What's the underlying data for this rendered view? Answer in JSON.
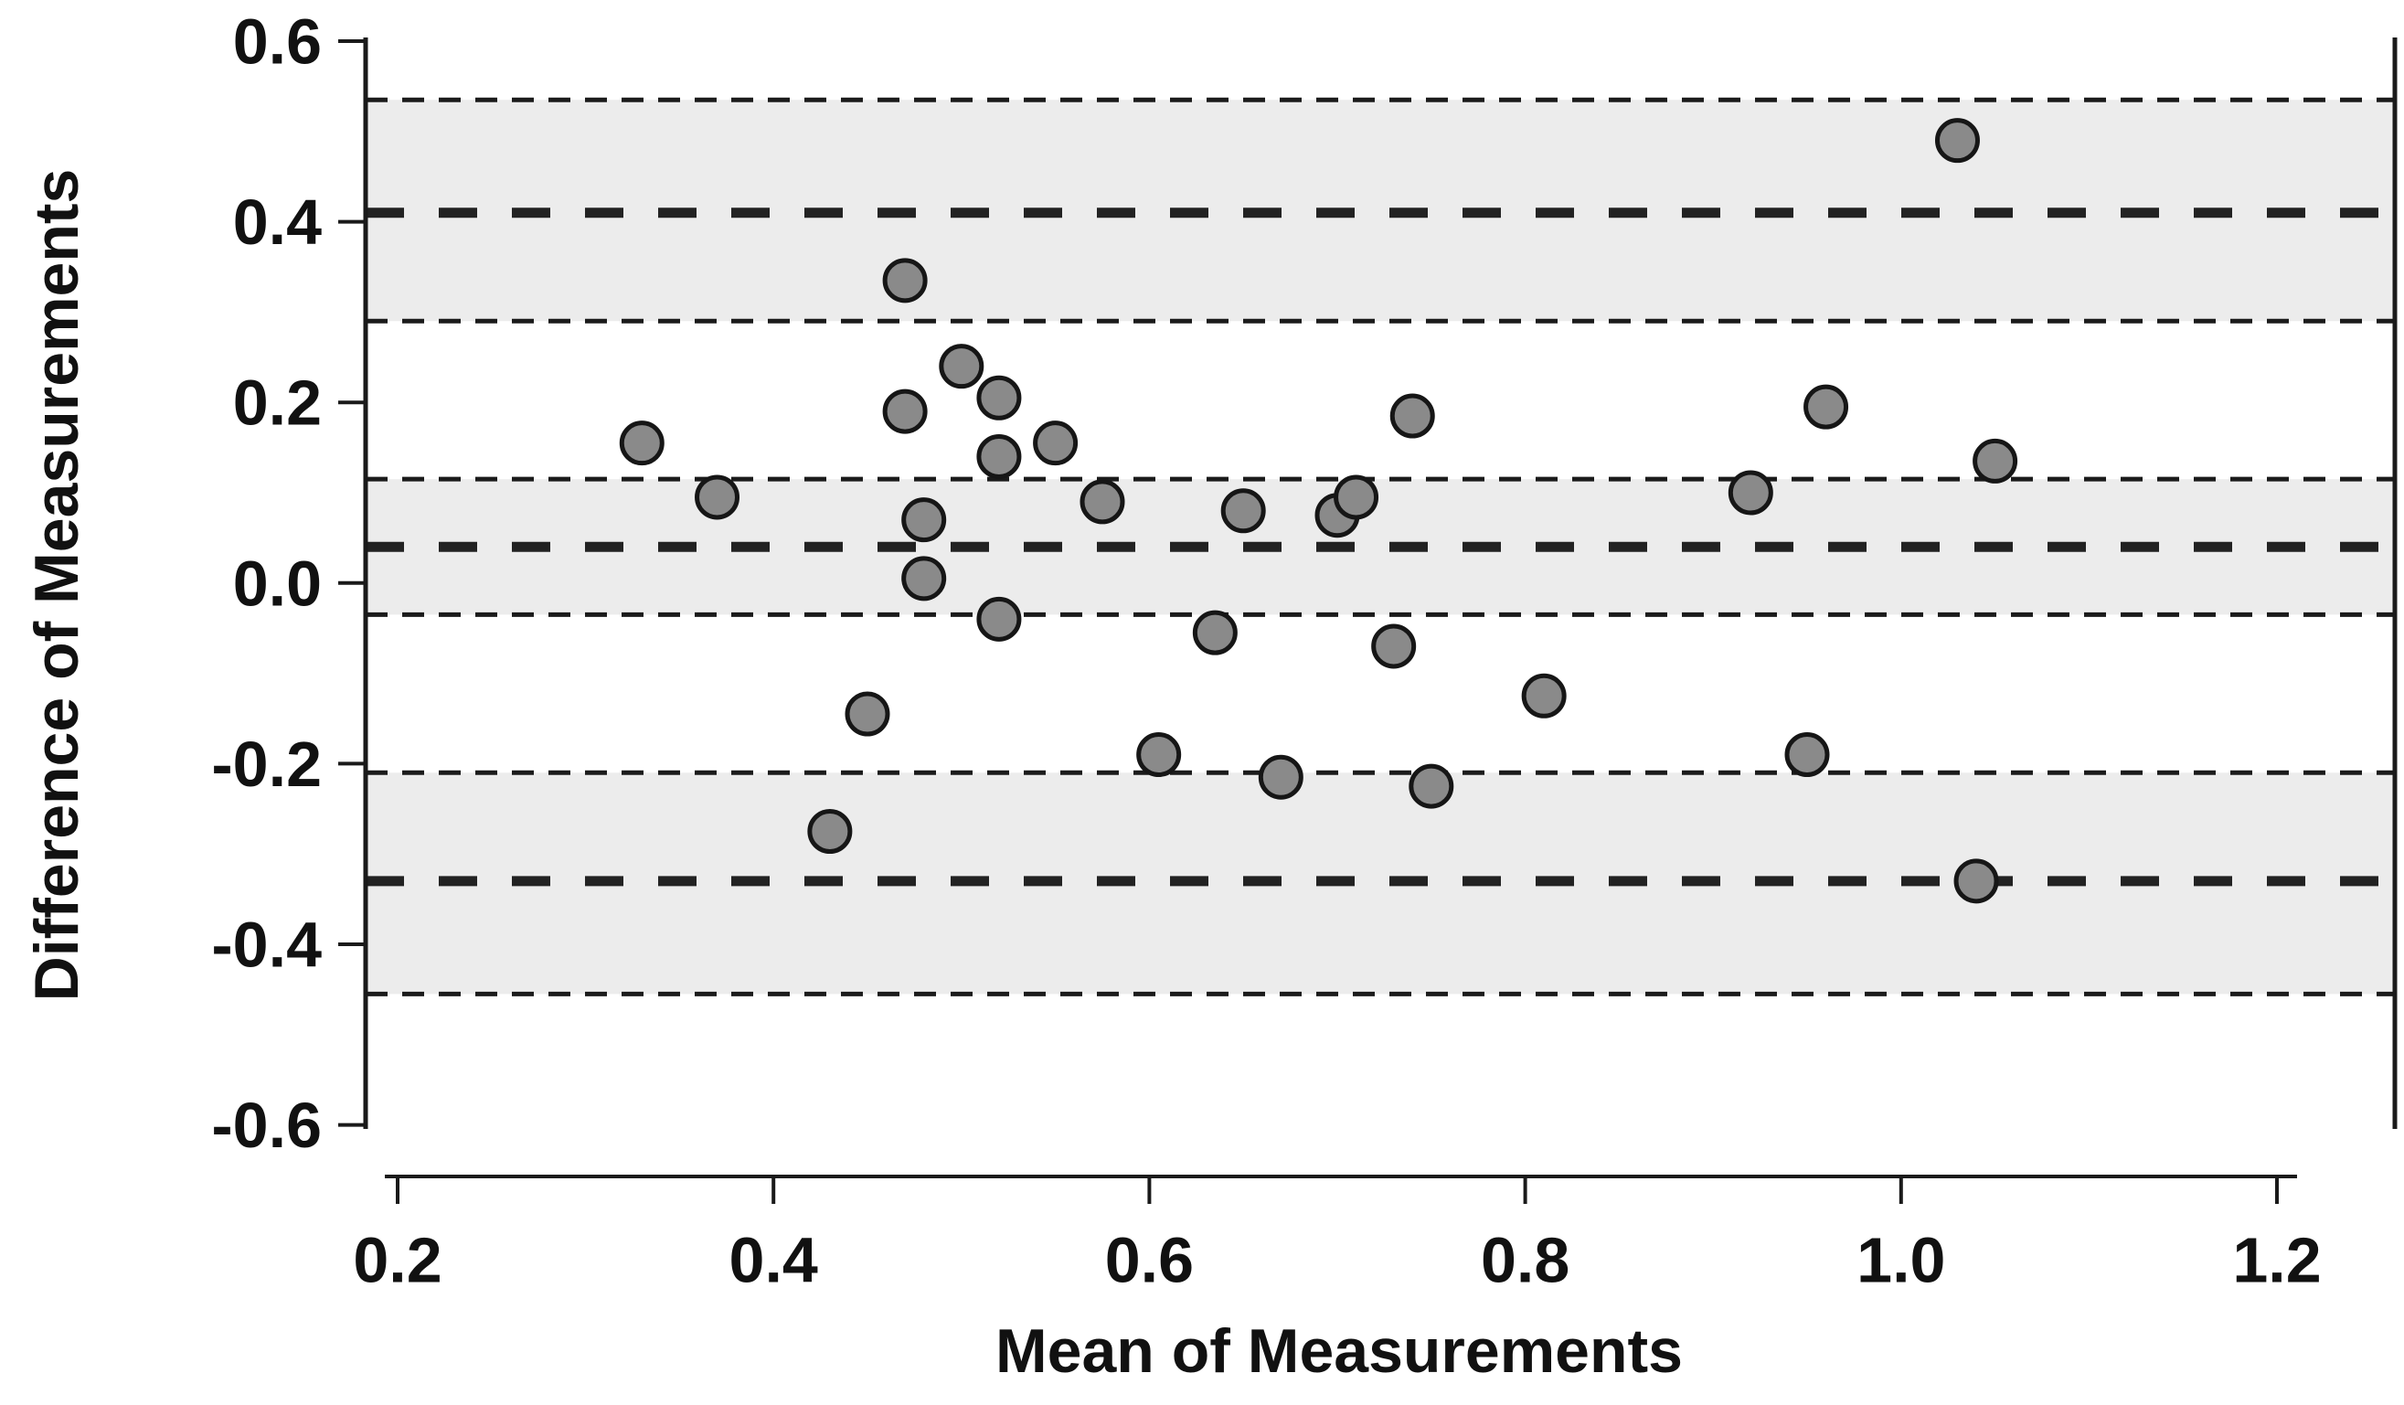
{
  "figure": {
    "kind": "statistical-plot",
    "x_title": "Mean of Measurements",
    "y_title": "Difference of Measurements"
  },
  "chart_data": {
    "type": "scatter",
    "title": "",
    "xlabel": "Mean of Measurements",
    "ylabel": "Difference of Measurements",
    "xlim": [
      0.183,
      1.263
    ],
    "ylim": [
      -0.6,
      0.6
    ],
    "grid": false,
    "legend": "none",
    "x_ticks": {
      "values": [
        0.2,
        0.4,
        0.6,
        0.8,
        1.0,
        1.2
      ],
      "labels": [
        "0.2",
        "0.4",
        "0.6",
        "0.8",
        "1.0",
        "1.2"
      ]
    },
    "y_ticks": {
      "values": [
        0.6,
        0.4,
        0.2,
        0.0,
        -0.2,
        -0.4,
        -0.6
      ],
      "labels": [
        "0.6",
        "0.4",
        "0.2",
        "0.0",
        "-0.2",
        "-0.4",
        "-0.6"
      ]
    },
    "points": [
      [
        0.33,
        0.155
      ],
      [
        0.37,
        0.095
      ],
      [
        0.43,
        -0.275
      ],
      [
        0.45,
        -0.145
      ],
      [
        0.47,
        0.335
      ],
      [
        0.47,
        0.19
      ],
      [
        0.48,
        0.07
      ],
      [
        0.48,
        0.005
      ],
      [
        0.5,
        0.24
      ],
      [
        0.52,
        0.205
      ],
      [
        0.52,
        0.14
      ],
      [
        0.52,
        -0.04
      ],
      [
        0.55,
        0.155
      ],
      [
        0.575,
        0.09
      ],
      [
        0.605,
        -0.19
      ],
      [
        0.635,
        -0.055
      ],
      [
        0.65,
        0.08
      ],
      [
        0.67,
        -0.215
      ],
      [
        0.7,
        0.075
      ],
      [
        0.71,
        0.095
      ],
      [
        0.73,
        -0.07
      ],
      [
        0.74,
        0.185
      ],
      [
        0.75,
        -0.225
      ],
      [
        0.81,
        -0.125
      ],
      [
        0.92,
        0.1
      ],
      [
        0.95,
        -0.19
      ],
      [
        0.96,
        0.195
      ],
      [
        1.03,
        0.49
      ],
      [
        1.04,
        -0.33
      ],
      [
        1.05,
        0.135
      ]
    ],
    "reference_lines": {
      "mean_bias": {
        "value": 0.04,
        "ci": [
          -0.035,
          0.115
        ]
      },
      "upper_loa": {
        "value": 0.41,
        "ci": [
          0.29,
          0.535
        ]
      },
      "lower_loa": {
        "value": -0.33,
        "ci": [
          -0.455,
          -0.21
        ]
      }
    },
    "style": {
      "band_color": "#ececec",
      "point_fill": "#8a8a8a",
      "point_stroke": "#161616",
      "heavy_dash_color": "#222222",
      "thin_dash_color": "#1b1b1b",
      "axis_color": "#1a1a1a",
      "label_color": "#111111"
    }
  }
}
